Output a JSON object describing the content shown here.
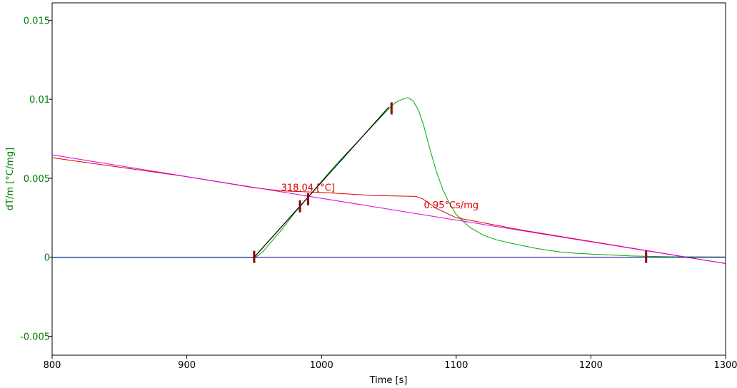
{
  "chart_data": {
    "type": "line",
    "xlabel": "Time [s]",
    "ylabel": "dT/m  [°C/mg]",
    "xlim": [
      800,
      1300
    ],
    "ylim": [
      -0.0062,
      0.0161
    ],
    "x_ticks": [
      "800",
      "900",
      "1000",
      "1100",
      "1200",
      "1300"
    ],
    "y_ticks": [
      "-0.005",
      "0",
      "0.005",
      "0.01",
      "0.015"
    ],
    "colors": {
      "signal": "#00aa00",
      "temperature": "#dd0000",
      "reference": "#dd00dd",
      "baseline": "#0000aa",
      "tangent": "#000000",
      "marker": "#880000",
      "ylabel": "#008000",
      "text": "#000000"
    },
    "series": [
      {
        "key": "signal",
        "x": [
          800,
          940,
          945,
          950,
          953,
          957,
          962,
          970,
          980,
          990,
          1000,
          1010,
          1020,
          1030,
          1040,
          1050,
          1055,
          1060,
          1064,
          1068,
          1072,
          1076,
          1080,
          1085,
          1090,
          1095,
          1100,
          1110,
          1120,
          1130,
          1140,
          1160,
          1180,
          1200,
          1230,
          1260,
          1300
        ],
        "y": [
          0.0,
          0.0,
          0.0,
          0.0,
          0.0001,
          0.0004,
          0.0009,
          0.0017,
          0.0028,
          0.0038,
          0.0048,
          0.0058,
          0.0067,
          0.0076,
          0.0085,
          0.0094,
          0.0098,
          0.01,
          0.0101,
          0.0099,
          0.0093,
          0.0083,
          0.007,
          0.0055,
          0.0043,
          0.0034,
          0.0027,
          0.0019,
          0.0014,
          0.0011,
          0.0009,
          0.00055,
          0.0003,
          0.0002,
          8e-05,
          3e-05,
          2e-05
        ]
      },
      {
        "key": "temperature",
        "x": [
          800,
          850,
          900,
          950,
          970,
          1000,
          1020,
          1040,
          1055,
          1070,
          1075,
          1080,
          1085,
          1100,
          1150,
          1200,
          1250,
          1300
        ],
        "y": [
          0.0063,
          0.0057,
          0.0051,
          0.0044,
          0.0042,
          0.0041,
          0.004,
          0.0039,
          0.00388,
          0.00385,
          0.0037,
          0.0034,
          0.0031,
          0.0025,
          0.0017,
          0.001,
          0.0003,
          -0.0004
        ]
      },
      {
        "key": "reference",
        "x": [
          800,
          1300
        ],
        "y": [
          0.00648,
          -0.0004
        ]
      },
      {
        "key": "baseline",
        "x": [
          800,
          1300
        ],
        "y": [
          0.0,
          0.0
        ]
      },
      {
        "key": "tangent",
        "x": [
          950,
          1050
        ],
        "y": [
          0.0,
          0.0095
        ]
      }
    ],
    "markers": [
      {
        "x": 950,
        "y": 0.0
      },
      {
        "x": 984,
        "y": 0.0032
      },
      {
        "x": 990,
        "y": 0.00365
      },
      {
        "x": 1052,
        "y": 0.0094
      },
      {
        "x": 1241,
        "y": 0.0
      }
    ],
    "annotations": [
      {
        "text": "318.04 [°C]",
        "x": 970,
        "y": 0.0042
      },
      {
        "text": "0.95°Cs/mg",
        "x": 1076,
        "y": 0.0031
      }
    ]
  }
}
